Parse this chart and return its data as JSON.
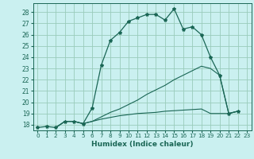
{
  "xlabel": "Humidex (Indice chaleur)",
  "background_color": "#caf0f0",
  "grid_color": "#99ccbb",
  "line_color": "#1a6655",
  "xlim": [
    -0.5,
    23.5
  ],
  "ylim": [
    17.5,
    28.8
  ],
  "yticks": [
    18,
    19,
    20,
    21,
    22,
    23,
    24,
    25,
    26,
    27,
    28
  ],
  "xticks": [
    0,
    1,
    2,
    3,
    4,
    5,
    6,
    7,
    8,
    9,
    10,
    11,
    12,
    13,
    14,
    15,
    16,
    17,
    18,
    19,
    20,
    21,
    22,
    23
  ],
  "s1_x": [
    0,
    1,
    2,
    3,
    4,
    5,
    6,
    7,
    8,
    9,
    10,
    11,
    12,
    13,
    14,
    15,
    16,
    17,
    18,
    19,
    20,
    21,
    22
  ],
  "s1_y": [
    17.75,
    17.85,
    17.75,
    18.3,
    18.3,
    18.1,
    19.5,
    23.3,
    25.5,
    26.2,
    27.2,
    27.5,
    27.8,
    27.8,
    27.3,
    28.3,
    26.5,
    26.7,
    26.0,
    24.0,
    22.4,
    19.0,
    19.2
  ],
  "s2_x": [
    2,
    3,
    4,
    5,
    6,
    7,
    8,
    9,
    10,
    11,
    12,
    13,
    14,
    15,
    16,
    17,
    18,
    19,
    20,
    21,
    22
  ],
  "s2_y": [
    17.75,
    18.3,
    18.3,
    18.1,
    18.3,
    18.7,
    19.1,
    19.4,
    19.8,
    20.2,
    20.7,
    21.1,
    21.5,
    22.0,
    22.4,
    22.8,
    23.2,
    23.0,
    22.4,
    19.0,
    19.2
  ],
  "s3_x": [
    2,
    3,
    4,
    5,
    6,
    7,
    8,
    9,
    10,
    11,
    12,
    13,
    14,
    15,
    16,
    17,
    18,
    19,
    20,
    21,
    22
  ],
  "s3_y": [
    17.75,
    18.3,
    18.3,
    18.1,
    18.3,
    18.5,
    18.65,
    18.8,
    18.9,
    19.0,
    19.05,
    19.1,
    19.2,
    19.25,
    19.3,
    19.35,
    19.4,
    19.0,
    19.0,
    19.0,
    19.2
  ]
}
